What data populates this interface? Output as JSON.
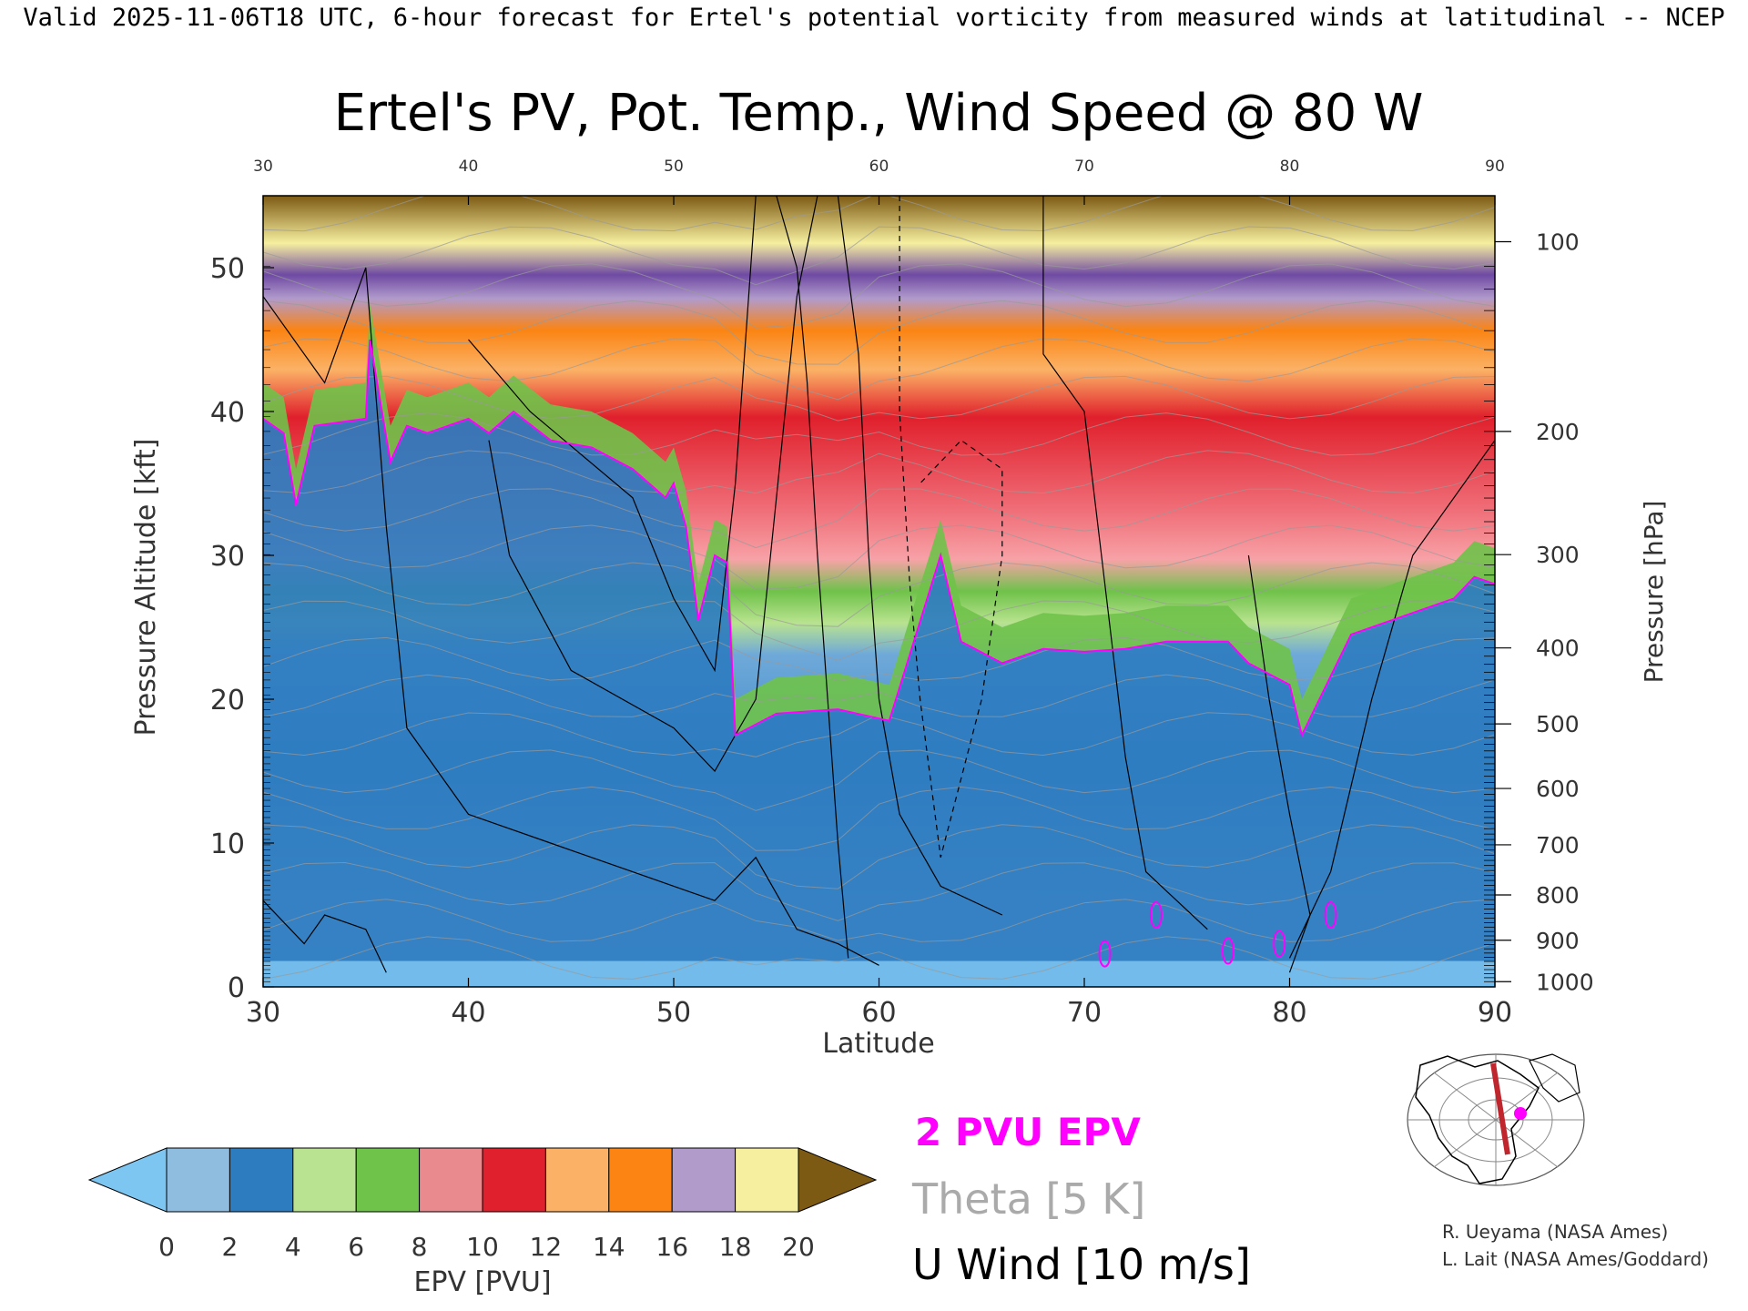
{
  "header": {
    "valid_line": "Valid 2025-11-06T18 UTC, 6-hour forecast for Ertel's potential vorticity from measured winds at latitudinal -- NCEP"
  },
  "chart_data": {
    "type": "heatmap",
    "title": "Ertel's PV, Pot. Temp., Wind Speed @ 80 W",
    "xlabel": "Latitude",
    "ylabel_left": "Pressure Altitude [kft]",
    "ylabel_right": "Pressure [hPa]",
    "xlim": [
      30,
      90
    ],
    "ylim": [
      0,
      55
    ],
    "x_ticks": [
      30,
      40,
      50,
      60,
      70,
      80,
      90
    ],
    "x_tick_labels": [
      "30",
      "40",
      "50",
      "60",
      "70",
      "80",
      "90"
    ],
    "top_tick_labels": [
      "30",
      "40",
      "50",
      "60",
      "70",
      "80",
      "90"
    ],
    "y_ticks": [
      0,
      10,
      20,
      30,
      40,
      50
    ],
    "y_tick_labels": [
      "0",
      "10",
      "20",
      "30",
      "40",
      "50"
    ],
    "pressure_ticks": [
      {
        "hpa": 100,
        "label": "100"
      },
      {
        "hpa": 200,
        "label": "200"
      },
      {
        "hpa": 300,
        "label": "300"
      },
      {
        "hpa": 400,
        "label": "400"
      },
      {
        "hpa": 500,
        "label": "500"
      },
      {
        "hpa": 600,
        "label": "600"
      },
      {
        "hpa": 700,
        "label": "700"
      },
      {
        "hpa": 800,
        "label": "800"
      },
      {
        "hpa": 900,
        "label": "900"
      },
      {
        "hpa": 1000,
        "label": "1000"
      }
    ],
    "tropopause_2pvu_kft": [
      [
        30,
        39.5
      ],
      [
        31,
        38.5
      ],
      [
        31.6,
        33.5
      ],
      [
        32.5,
        39
      ],
      [
        35,
        39.5
      ],
      [
        35.2,
        45
      ],
      [
        36.2,
        36.5
      ],
      [
        37,
        39
      ],
      [
        38,
        38.5
      ],
      [
        40,
        39.5
      ],
      [
        41,
        38.5
      ],
      [
        42.2,
        40
      ],
      [
        44,
        38
      ],
      [
        46,
        37.5
      ],
      [
        48,
        36
      ],
      [
        49.6,
        34
      ],
      [
        50,
        35
      ],
      [
        50.6,
        32
      ],
      [
        51.2,
        25.5
      ],
      [
        52,
        30
      ],
      [
        52.6,
        29.5
      ],
      [
        53,
        17.5
      ],
      [
        55,
        19
      ],
      [
        58,
        19.3
      ],
      [
        60.5,
        18.5
      ],
      [
        63,
        30
      ],
      [
        64,
        24
      ],
      [
        66,
        22.5
      ],
      [
        68,
        23.5
      ],
      [
        70,
        23.3
      ],
      [
        72,
        23.5
      ],
      [
        74,
        24
      ],
      [
        77,
        24
      ],
      [
        78,
        22.5
      ],
      [
        80,
        21
      ],
      [
        80.6,
        17.5
      ],
      [
        83,
        24.5
      ],
      [
        86,
        26
      ],
      [
        88,
        27
      ],
      [
        89,
        28.5
      ],
      [
        90,
        28
      ]
    ],
    "pv_levels": {
      "units": "PVU",
      "boundaries": [
        0,
        2,
        4,
        6,
        8,
        10,
        12,
        14,
        16,
        18,
        20
      ],
      "colors_below_0": "#7ec6f2",
      "colors": [
        "#8fbde0",
        "#2e7cc0",
        "#b9e390",
        "#6fc24a",
        "#e98a8f",
        "#e0202c",
        "#fbb266",
        "#fb8413",
        "#b19bcb",
        "#6f4aa3",
        "#f6efa0"
      ],
      "colors_above_20": "#7d5a14"
    },
    "magenta_overlay_blobs": [
      {
        "lat": 73.5,
        "kft": 5
      },
      {
        "lat": 77,
        "kft": 2.5
      },
      {
        "lat": 79.5,
        "kft": 3
      },
      {
        "lat": 82,
        "kft": 5
      },
      {
        "lat": 71,
        "kft": 2.3
      }
    ]
  },
  "colorbar": {
    "tick_labels": [
      "0",
      "2",
      "4",
      "6",
      "8",
      "10",
      "12",
      "14",
      "16",
      "18",
      "20"
    ],
    "label": "EPV [PVU]"
  },
  "legend": {
    "pvu_label": "2 PVU EPV",
    "pvu_color": "#ff00ff",
    "theta_label": "Theta [5 K]",
    "theta_color": "#aaaaaa",
    "wind_label": "U Wind [10 m/s]",
    "wind_color": "#000000"
  },
  "credits": {
    "line1": "R. Ueyama (NASA Ames)",
    "line2": "L. Lait (NASA Ames/Goddard)"
  }
}
